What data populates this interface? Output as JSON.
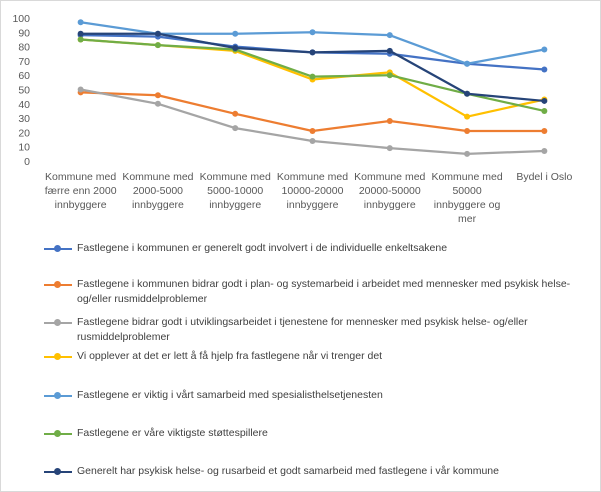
{
  "chart_data": {
    "type": "line",
    "categories": [
      [
        "Kommune med",
        "færre enn 2000",
        "innbyggere"
      ],
      [
        "Kommune med",
        "2000-5000",
        "innbyggere"
      ],
      [
        "Kommune med",
        "5000-10000",
        "innbyggere"
      ],
      [
        "Kommune med",
        "10000-20000",
        "innbyggere"
      ],
      [
        "Kommune med",
        "20000-50000",
        "innbyggere"
      ],
      [
        "Kommune med",
        "50000",
        "innbyggere og",
        "mer"
      ],
      [
        "Bydel i Oslo"
      ]
    ],
    "ylim": [
      0,
      100
    ],
    "yticks": [
      0,
      10,
      20,
      30,
      40,
      50,
      60,
      70,
      80,
      90,
      100
    ],
    "grid": false,
    "legend_position": "bottom",
    "series": [
      {
        "name": "Fastlegene i kommunen er generelt godt involvert i de individuelle enkeltsakene",
        "color": "#4472C4",
        "values": [
          88,
          87,
          80,
          76,
          75,
          68,
          64
        ]
      },
      {
        "name": "Fastlegene i kommunen bidrar godt i plan- og systemarbeid i arbeidet med mennesker med psykisk helse- og/eller rusmiddelproblemer",
        "color": "#ED7D31",
        "values": [
          48,
          46,
          33,
          21,
          28,
          21,
          21
        ]
      },
      {
        "name": "Fastlegene bidrar godt i utviklingsarbeidet i tjenestene for mennesker med psykisk helse- og/eller rusmiddelproblemer",
        "color": "#A5A5A5",
        "values": [
          50,
          40,
          23,
          14,
          9,
          5,
          7
        ]
      },
      {
        "name": "Vi opplever at det er lett å få hjelp fra fastlegene når vi trenger det",
        "color": "#FFC000",
        "values": [
          85,
          81,
          77,
          57,
          62,
          31,
          43
        ]
      },
      {
        "name": "Fastlegene er viktig i vårt samarbeid med spesialisthelsetjenesten",
        "color": "#5B9BD5",
        "values": [
          97,
          89,
          89,
          90,
          88,
          68,
          78
        ]
      },
      {
        "name": "Fastlegene er våre viktigste støttespillere",
        "color": "#70AD47",
        "values": [
          85,
          81,
          78,
          59,
          60,
          47,
          35
        ]
      },
      {
        "name": "Generelt har psykisk helse- og rusarbeid et godt samarbeid med fastlegene i vår kommune",
        "color": "#264478",
        "values": [
          89,
          89,
          79,
          76,
          77,
          47,
          42
        ]
      }
    ]
  }
}
